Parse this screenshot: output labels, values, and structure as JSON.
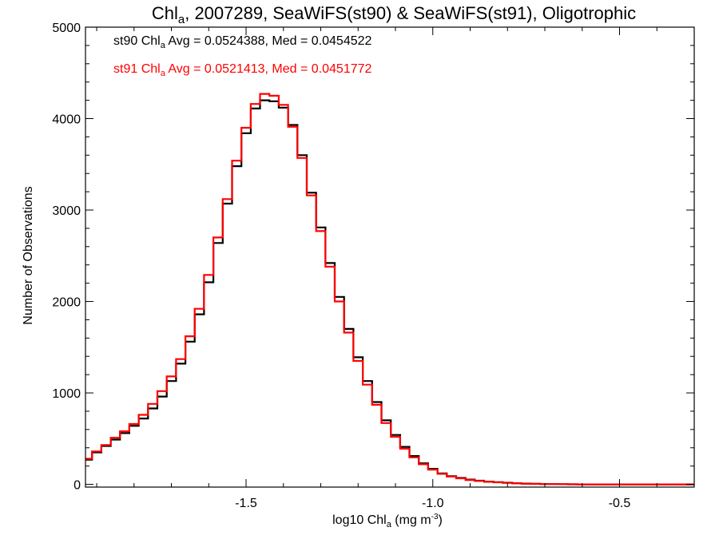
{
  "chart_data": {
    "type": "line",
    "title": {
      "prefix": "Chl",
      "sub": "a",
      "suffix": ", 2007289, SeaWiFS(st90) & SeaWiFS(st91), Oligotrophic"
    },
    "xlabel": {
      "prefix": "log10 Chl",
      "sub": "a",
      "suffix": " (mg m",
      "sup": "-3",
      "end": ")"
    },
    "ylabel": "Number of Observations",
    "xlim": [
      -1.93,
      -0.3
    ],
    "ylim": [
      -30,
      5000
    ],
    "x_ticks": [
      -1.5,
      -1.0,
      -0.5
    ],
    "x_tick_labels": [
      "-1.5",
      "-1.0",
      "-0.5"
    ],
    "y_ticks": [
      0,
      1000,
      2000,
      3000,
      4000,
      5000
    ],
    "y_tick_labels": [
      "0",
      "1000",
      "2000",
      "3000",
      "4000",
      "5000"
    ],
    "grid": false,
    "step": true,
    "legend": [
      {
        "prefix": "st90 Chl",
        "sub": "a",
        "suffix": " Avg = 0.0524388, Med = 0.0454522",
        "color": "#000000"
      },
      {
        "prefix": "st91 Chl",
        "sub": "a",
        "suffix": " Avg = 0.0521413, Med = 0.0451772",
        "color": "#ff0000"
      }
    ],
    "x": [
      -1.925,
      -1.9,
      -1.875,
      -1.85,
      -1.825,
      -1.8,
      -1.775,
      -1.75,
      -1.725,
      -1.7,
      -1.675,
      -1.65,
      -1.625,
      -1.6,
      -1.575,
      -1.55,
      -1.525,
      -1.5,
      -1.475,
      -1.45,
      -1.425,
      -1.4,
      -1.375,
      -1.35,
      -1.325,
      -1.3,
      -1.275,
      -1.25,
      -1.225,
      -1.2,
      -1.175,
      -1.15,
      -1.125,
      -1.1,
      -1.075,
      -1.05,
      -1.025,
      -1.0,
      -0.975,
      -0.95,
      -0.925,
      -0.9,
      -0.875,
      -0.85,
      -0.825,
      -0.8,
      -0.775,
      -0.75,
      -0.725,
      -0.7,
      -0.675,
      -0.65,
      -0.625,
      -0.6,
      -0.575,
      -0.55,
      -0.525,
      -0.5,
      -0.475,
      -0.45,
      -0.425,
      -0.4,
      -0.375,
      -0.35,
      -0.325,
      -0.3
    ],
    "series": [
      {
        "name": "st90",
        "color": "#000000",
        "values": [
          270,
          350,
          420,
          490,
          560,
          640,
          720,
          830,
          960,
          1130,
          1320,
          1560,
          1860,
          2210,
          2640,
          3070,
          3480,
          3840,
          4110,
          4200,
          4190,
          4120,
          3930,
          3600,
          3190,
          2810,
          2420,
          2050,
          1700,
          1390,
          1130,
          900,
          700,
          540,
          410,
          310,
          230,
          170,
          120,
          90,
          70,
          52,
          40,
          30,
          24,
          18,
          12,
          8,
          6,
          4,
          3,
          2,
          1,
          0,
          0,
          0,
          0,
          0,
          0,
          0,
          0,
          0,
          0,
          0,
          0,
          0
        ]
      },
      {
        "name": "st91",
        "color": "#ff0000",
        "values": [
          280,
          360,
          430,
          510,
          580,
          660,
          760,
          880,
          1020,
          1180,
          1370,
          1620,
          1920,
          2290,
          2700,
          3120,
          3540,
          3900,
          4160,
          4270,
          4250,
          4150,
          3910,
          3570,
          3160,
          2770,
          2380,
          2000,
          1660,
          1350,
          1090,
          870,
          670,
          520,
          390,
          295,
          220,
          160,
          115,
          85,
          66,
          48,
          37,
          28,
          22,
          16,
          11,
          7,
          5,
          4,
          3,
          2,
          1,
          0,
          0,
          0,
          0,
          0,
          0,
          0,
          0,
          0,
          0,
          0,
          0,
          0
        ]
      }
    ]
  }
}
